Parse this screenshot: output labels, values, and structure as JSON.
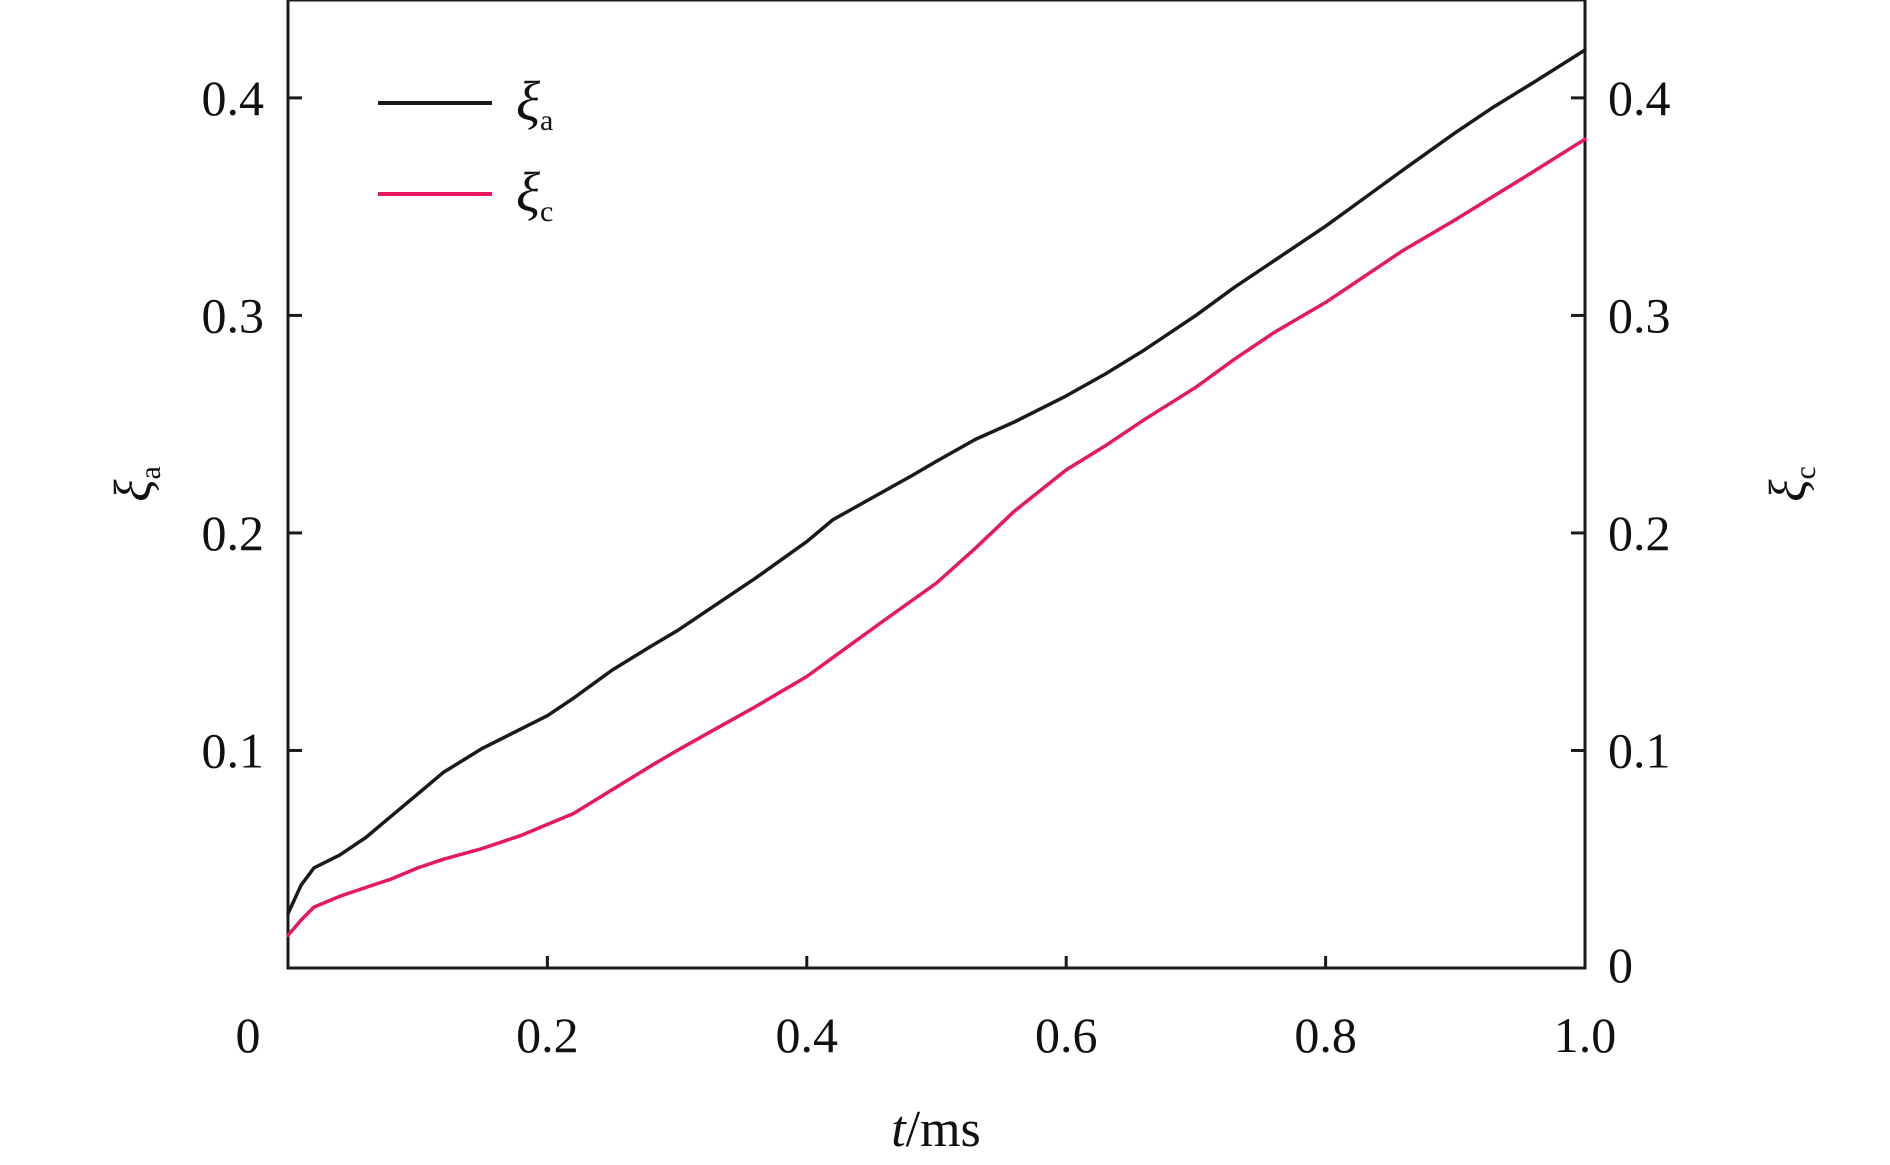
{
  "chart_data": {
    "type": "line",
    "xlabel": {
      "italic": "t",
      "rest": "/ms"
    },
    "ylabel_left": {
      "main": "ξ",
      "sub": "a"
    },
    "ylabel_right": {
      "main": "ξ",
      "sub": "c"
    },
    "xlim": [
      0,
      1.0
    ],
    "ylim_left": [
      0,
      0.445
    ],
    "ylim_right": [
      0,
      0.445
    ],
    "x_ticks": [
      {
        "value": 0,
        "label": "0"
      },
      {
        "value": 0.2,
        "label": "0.2"
      },
      {
        "value": 0.4,
        "label": "0.4"
      },
      {
        "value": 0.6,
        "label": "0.6"
      },
      {
        "value": 0.8,
        "label": "0.8"
      },
      {
        "value": 1.0,
        "label": "1.0"
      }
    ],
    "y_ticks_left": [
      {
        "value": 0.1,
        "label": "0.1"
      },
      {
        "value": 0.2,
        "label": "0.2"
      },
      {
        "value": 0.3,
        "label": "0.3"
      },
      {
        "value": 0.4,
        "label": "0.4"
      }
    ],
    "y_ticks_right": [
      {
        "value": 0,
        "label": "0"
      },
      {
        "value": 0.1,
        "label": "0.1"
      },
      {
        "value": 0.2,
        "label": "0.2"
      },
      {
        "value": 0.3,
        "label": "0.3"
      },
      {
        "value": 0.4,
        "label": "0.4"
      }
    ],
    "grid": false,
    "legend_position": "top-left",
    "series": [
      {
        "key": "xi-a",
        "name": "ξ",
        "name_sub": "a",
        "axis": "left",
        "color": "#1a1a1a",
        "x": [
          0,
          0.01,
          0.02,
          0.04,
          0.06,
          0.08,
          0.1,
          0.12,
          0.15,
          0.18,
          0.2,
          0.22,
          0.25,
          0.28,
          0.3,
          0.33,
          0.36,
          0.4,
          0.42,
          0.45,
          0.48,
          0.5,
          0.53,
          0.56,
          0.6,
          0.63,
          0.66,
          0.7,
          0.73,
          0.76,
          0.8,
          0.83,
          0.86,
          0.9,
          0.93,
          0.96,
          1.0
        ],
        "y": [
          0.025,
          0.038,
          0.046,
          0.052,
          0.06,
          0.07,
          0.08,
          0.09,
          0.101,
          0.11,
          0.116,
          0.124,
          0.137,
          0.148,
          0.155,
          0.167,
          0.179,
          0.196,
          0.206,
          0.216,
          0.226,
          0.233,
          0.243,
          0.251,
          0.263,
          0.273,
          0.284,
          0.3,
          0.313,
          0.325,
          0.341,
          0.354,
          0.367,
          0.384,
          0.396,
          0.407,
          0.422
        ]
      },
      {
        "key": "xi-c",
        "name": "ξ",
        "name_sub": "c",
        "axis": "right",
        "color": "#e8185a",
        "x": [
          0,
          0.01,
          0.02,
          0.04,
          0.06,
          0.08,
          0.1,
          0.12,
          0.15,
          0.18,
          0.2,
          0.22,
          0.25,
          0.28,
          0.3,
          0.33,
          0.36,
          0.4,
          0.43,
          0.46,
          0.5,
          0.53,
          0.56,
          0.6,
          0.63,
          0.66,
          0.7,
          0.73,
          0.76,
          0.8,
          0.83,
          0.86,
          0.9,
          0.93,
          0.96,
          1.0
        ],
        "y": [
          0.015,
          0.022,
          0.028,
          0.033,
          0.037,
          0.041,
          0.046,
          0.05,
          0.055,
          0.061,
          0.066,
          0.071,
          0.082,
          0.093,
          0.1,
          0.11,
          0.12,
          0.134,
          0.147,
          0.16,
          0.177,
          0.193,
          0.21,
          0.229,
          0.24,
          0.252,
          0.267,
          0.28,
          0.292,
          0.306,
          0.318,
          0.33,
          0.344,
          0.355,
          0.366,
          0.381
        ]
      }
    ]
  }
}
